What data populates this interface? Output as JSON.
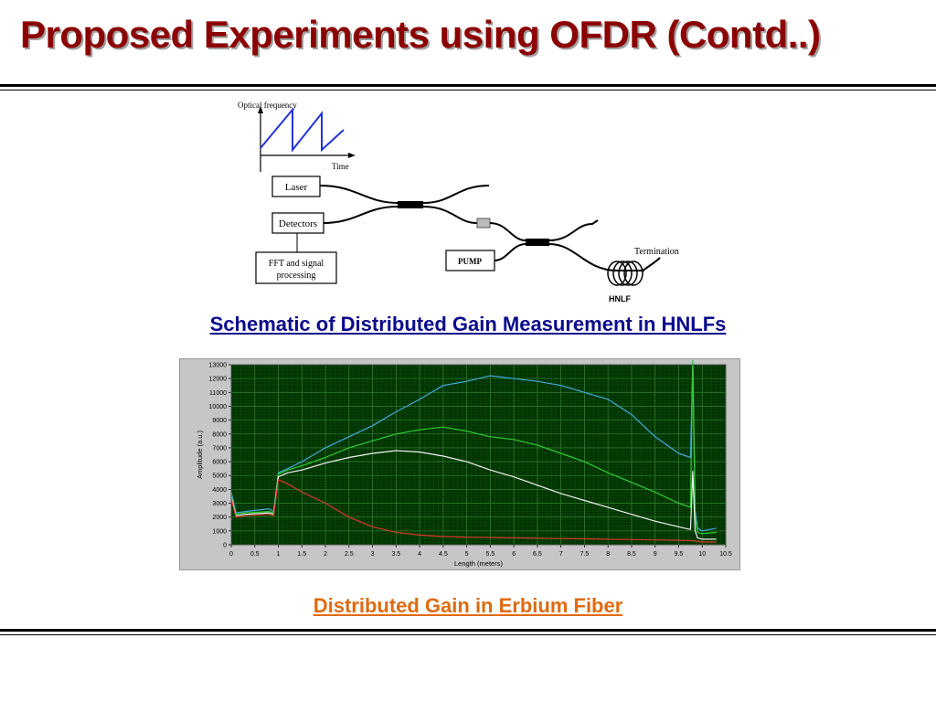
{
  "slide": {
    "title": "Proposed Experiments using OFDR (Contd..)",
    "caption1": "Schematic of Distributed Gain Measurement in HNLFs",
    "caption2": "Distributed Gain in Erbium Fiber",
    "colors": {
      "title": "#8b0000",
      "caption1": "#0a0a8c",
      "caption2": "#e06a10"
    }
  },
  "schematic": {
    "inset_ylabel": "Optical frequency",
    "inset_xlabel": "Time",
    "laser": "Laser",
    "detectors": "Detectors",
    "fft_line1": "FFT and signal",
    "fft_line2": "processing",
    "pump": "PUMP",
    "termination": "Termination",
    "hnlf": "HNLF"
  },
  "chart_data": {
    "type": "line",
    "xlabel": "Length (meters)",
    "ylabel": "Amplitude (a.u.)",
    "xlim": [
      0,
      10.5
    ],
    "ylim": [
      0,
      13000
    ],
    "xticks": [
      0,
      0.5,
      1,
      1.5,
      2,
      2.5,
      3,
      3.5,
      4,
      4.5,
      5,
      5.5,
      6,
      6.5,
      7,
      7.5,
      8,
      8.5,
      9,
      9.5,
      10,
      10.5
    ],
    "yticks": [
      0,
      1000,
      2000,
      3000,
      4000,
      5000,
      6000,
      7000,
      8000,
      9000,
      10000,
      11000,
      12000,
      13000
    ],
    "grid": true,
    "background": "#003300",
    "series": [
      {
        "color": "#44aadd",
        "x": [
          0,
          0.1,
          0.3,
          0.8,
          0.9,
          1.0,
          1.2,
          1.5,
          2.0,
          2.5,
          3.0,
          3.5,
          4.0,
          4.5,
          5.0,
          5.5,
          6.0,
          6.5,
          7.0,
          7.5,
          8.0,
          8.5,
          9.0,
          9.5,
          9.75,
          9.8,
          9.85,
          9.9,
          10.0,
          10.3
        ],
        "y": [
          3800,
          2300,
          2400,
          2600,
          2400,
          5200,
          5500,
          6000,
          7000,
          7800,
          8600,
          9600,
          10500,
          11500,
          11800,
          12200,
          12000,
          11800,
          11500,
          11000,
          10500,
          9400,
          7800,
          6600,
          6300,
          13500,
          2500,
          1200,
          1000,
          1200
        ]
      },
      {
        "color": "#33cc33",
        "x": [
          0,
          0.1,
          0.3,
          0.8,
          0.9,
          1.0,
          1.2,
          1.5,
          2.0,
          2.5,
          3.0,
          3.5,
          4.0,
          4.5,
          5.0,
          5.5,
          6.0,
          6.5,
          7.0,
          7.5,
          8.0,
          8.5,
          9.0,
          9.5,
          9.75,
          9.8,
          9.85,
          9.9,
          10.0,
          10.3
        ],
        "y": [
          3500,
          2200,
          2300,
          2400,
          2300,
          5100,
          5400,
          5700,
          6300,
          7000,
          7500,
          8000,
          8300,
          8500,
          8200,
          7800,
          7600,
          7200,
          6600,
          6000,
          5200,
          4500,
          3800,
          3000,
          2700,
          13500,
          2000,
          900,
          800,
          900
        ]
      },
      {
        "color": "#f2f2f2",
        "x": [
          0,
          0.1,
          0.3,
          0.8,
          0.9,
          1.0,
          1.2,
          1.5,
          2.0,
          2.5,
          3.0,
          3.5,
          4.0,
          4.5,
          5.0,
          5.5,
          6.0,
          6.5,
          7.0,
          7.5,
          8.0,
          8.5,
          9.0,
          9.5,
          9.75,
          9.8,
          9.85,
          9.9,
          10.0,
          10.3
        ],
        "y": [
          3400,
          2100,
          2200,
          2300,
          2200,
          4900,
          5200,
          5400,
          5900,
          6300,
          6600,
          6800,
          6700,
          6400,
          6000,
          5400,
          4900,
          4300,
          3700,
          3200,
          2700,
          2200,
          1700,
          1300,
          1100,
          5300,
          1000,
          500,
          400,
          400
        ]
      },
      {
        "color": "#d93a2a",
        "x": [
          0,
          0.1,
          0.3,
          0.8,
          0.9,
          1.0,
          1.2,
          1.5,
          2.0,
          2.5,
          3.0,
          3.5,
          4.0,
          4.5,
          5.0,
          6.0,
          7.0,
          8.0,
          9.0,
          9.8,
          10.0,
          10.3
        ],
        "y": [
          3300,
          2000,
          2100,
          2200,
          2100,
          4700,
          4400,
          3800,
          3000,
          2000,
          1300,
          900,
          700,
          600,
          550,
          500,
          450,
          400,
          350,
          300,
          200,
          200
        ]
      }
    ]
  }
}
